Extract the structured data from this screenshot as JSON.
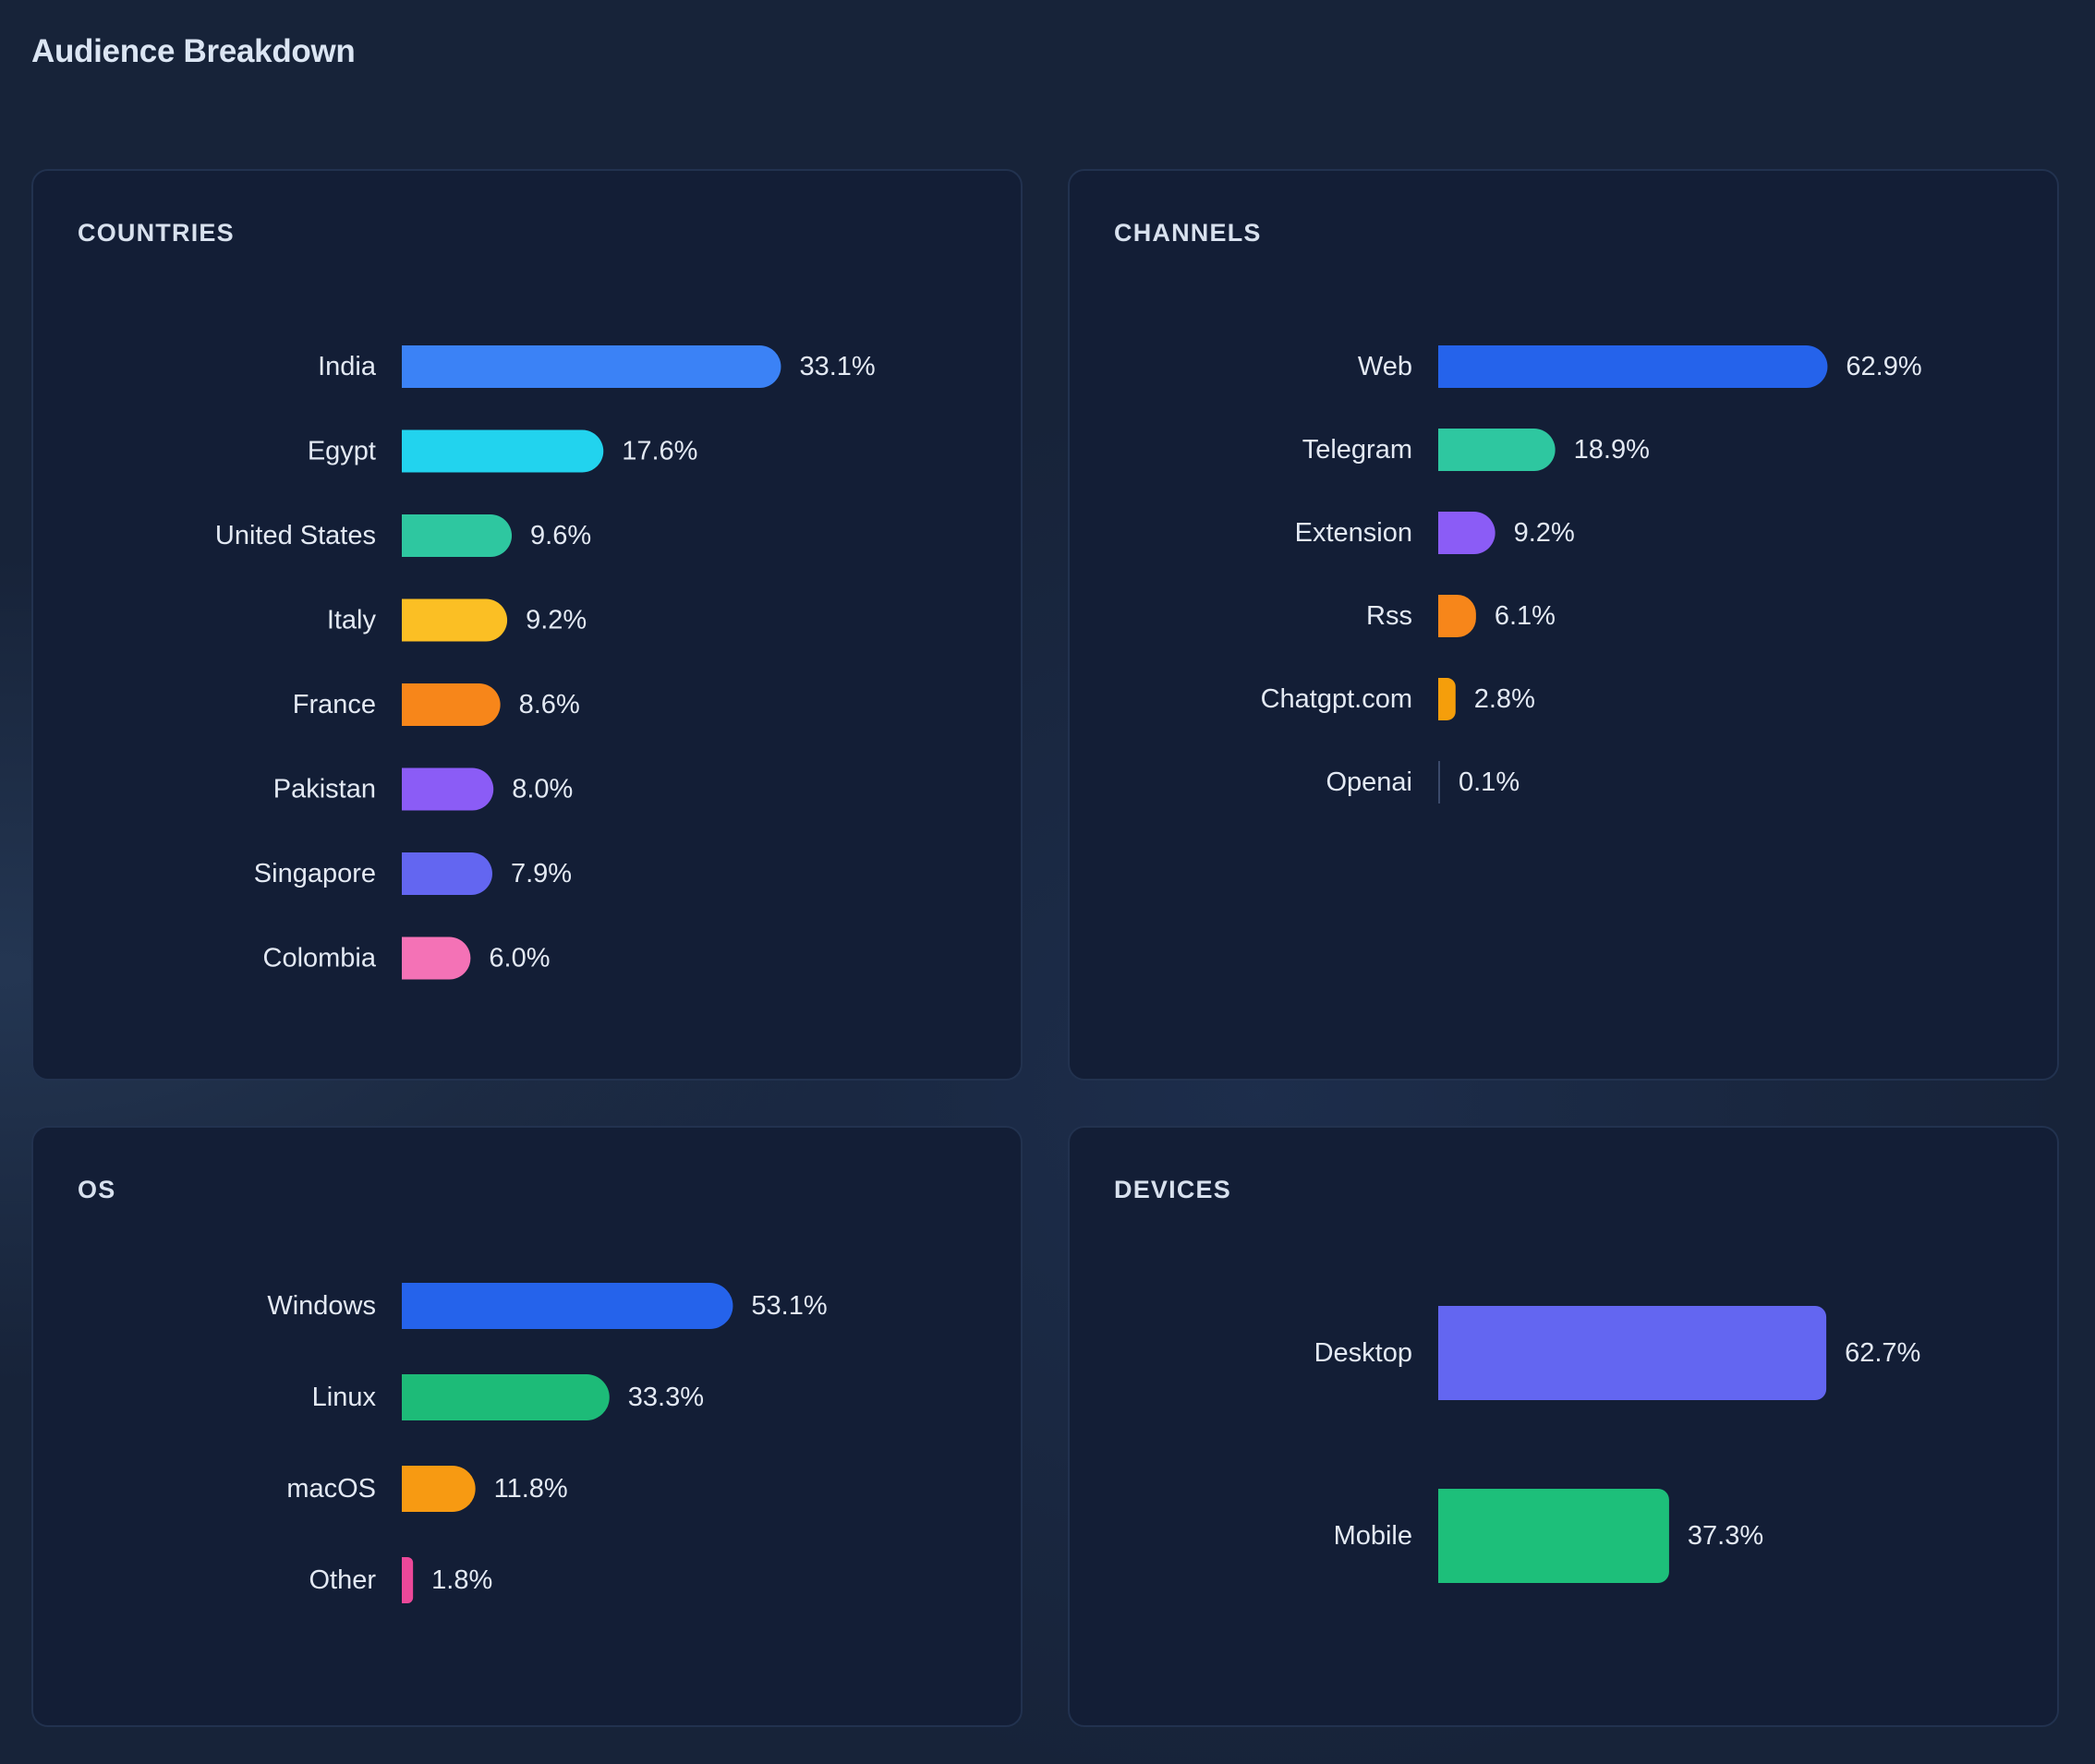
{
  "header": {
    "title": "Audience Breakdown"
  },
  "chart_data": [
    {
      "id": "countries",
      "type": "bar",
      "orientation": "horizontal",
      "title": "COUNTRIES",
      "categories": [
        "India",
        "Egypt",
        "United States",
        "Italy",
        "France",
        "Pakistan",
        "Singapore",
        "Colombia"
      ],
      "values": [
        33.1,
        17.6,
        9.6,
        9.2,
        8.6,
        8.0,
        7.9,
        6.0
      ],
      "value_labels": [
        "33.1%",
        "17.6%",
        "9.6%",
        "9.2%",
        "8.6%",
        "8.0%",
        "7.9%",
        "6.0%"
      ],
      "colors": [
        "#3b82f6",
        "#22d3ee",
        "#2ec7a0",
        "#fbbf24",
        "#f7861a",
        "#8b5cf6",
        "#6366f1",
        "#f472b6"
      ],
      "unit": "%",
      "grid": false,
      "legend": "none"
    },
    {
      "id": "channels",
      "type": "bar",
      "orientation": "horizontal",
      "title": "CHANNELS",
      "categories": [
        "Web",
        "Telegram",
        "Extension",
        "Rss",
        "Chatgpt.com",
        "Openai"
      ],
      "values": [
        62.9,
        18.9,
        9.2,
        6.1,
        2.8,
        0.1
      ],
      "value_labels": [
        "62.9%",
        "18.9%",
        "9.2%",
        "6.1%",
        "2.8%",
        "0.1%"
      ],
      "colors": [
        "#2563eb",
        "#2ec7a0",
        "#8b5cf6",
        "#f7861a",
        "#f59e0b",
        "#3b4a6b"
      ],
      "unit": "%",
      "grid": false,
      "legend": "none"
    },
    {
      "id": "os",
      "type": "bar",
      "orientation": "horizontal",
      "title": "OS",
      "categories": [
        "Windows",
        "Linux",
        "macOS",
        "Other"
      ],
      "values": [
        53.1,
        33.3,
        11.8,
        1.8
      ],
      "value_labels": [
        "53.1%",
        "33.3%",
        "11.8%",
        "1.8%"
      ],
      "colors": [
        "#2563eb",
        "#1dbb78",
        "#f79a12",
        "#ec4899"
      ],
      "unit": "%",
      "grid": false,
      "legend": "none"
    },
    {
      "id": "devices",
      "type": "bar",
      "orientation": "horizontal",
      "title": "DEVICES",
      "categories": [
        "Desktop",
        "Mobile"
      ],
      "values": [
        62.7,
        37.3
      ],
      "value_labels": [
        "62.7%",
        "37.3%"
      ],
      "colors": [
        "#6366f1",
        "#1dbf7a"
      ],
      "unit": "%",
      "grid": false,
      "legend": "none"
    }
  ]
}
